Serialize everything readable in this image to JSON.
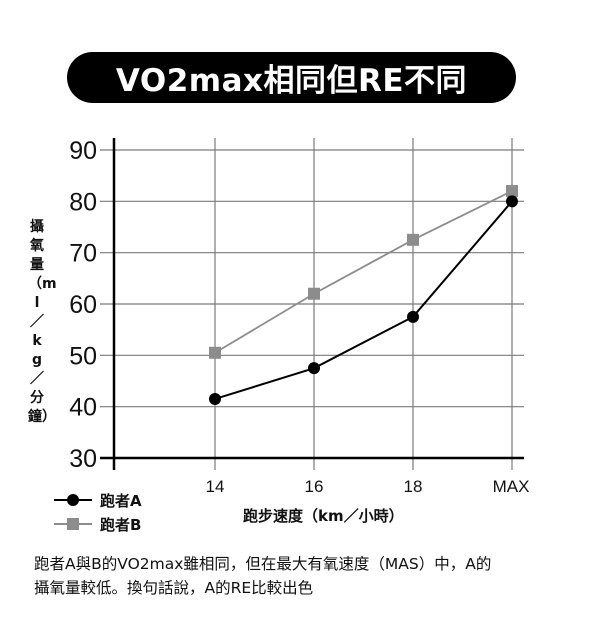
{
  "title": "VO2max相同但RE不同",
  "caption": {
    "line1": "跑者A與B的VO2max雖相同，但在最大有氧速度（MAS）中，A的",
    "line2": "攝氧量較低。換句話說，A的RE比較出色"
  },
  "legend": {
    "items": [
      {
        "label": "跑者A",
        "marker": "circle",
        "color": "#000000"
      },
      {
        "label": "跑者B",
        "marker": "square",
        "color": "#8c8c8c"
      }
    ]
  },
  "colors": {
    "series_a": "#000000",
    "series_b": "#8c8c8c",
    "grid": "#7a7a7a",
    "axis": "#000000"
  },
  "chart_data": {
    "type": "line",
    "title": "VO2max相同但RE不同",
    "xlabel": "跑步速度（km／小時）",
    "ylabel": "攝氧量（ml／kg／分鐘）",
    "categories": [
      "14",
      "16",
      "18",
      "MAX"
    ],
    "yticks": [
      30,
      40,
      50,
      60,
      70,
      80,
      90
    ],
    "ylim": [
      30,
      90
    ],
    "grid": true,
    "legend_position": "bottom-left",
    "series": [
      {
        "name": "跑者A",
        "marker": "circle",
        "color": "#000000",
        "values": [
          41.5,
          47.5,
          57.5,
          80
        ]
      },
      {
        "name": "跑者B",
        "marker": "square",
        "color": "#8c8c8c",
        "values": [
          50.5,
          62,
          72.5,
          82
        ]
      }
    ]
  }
}
